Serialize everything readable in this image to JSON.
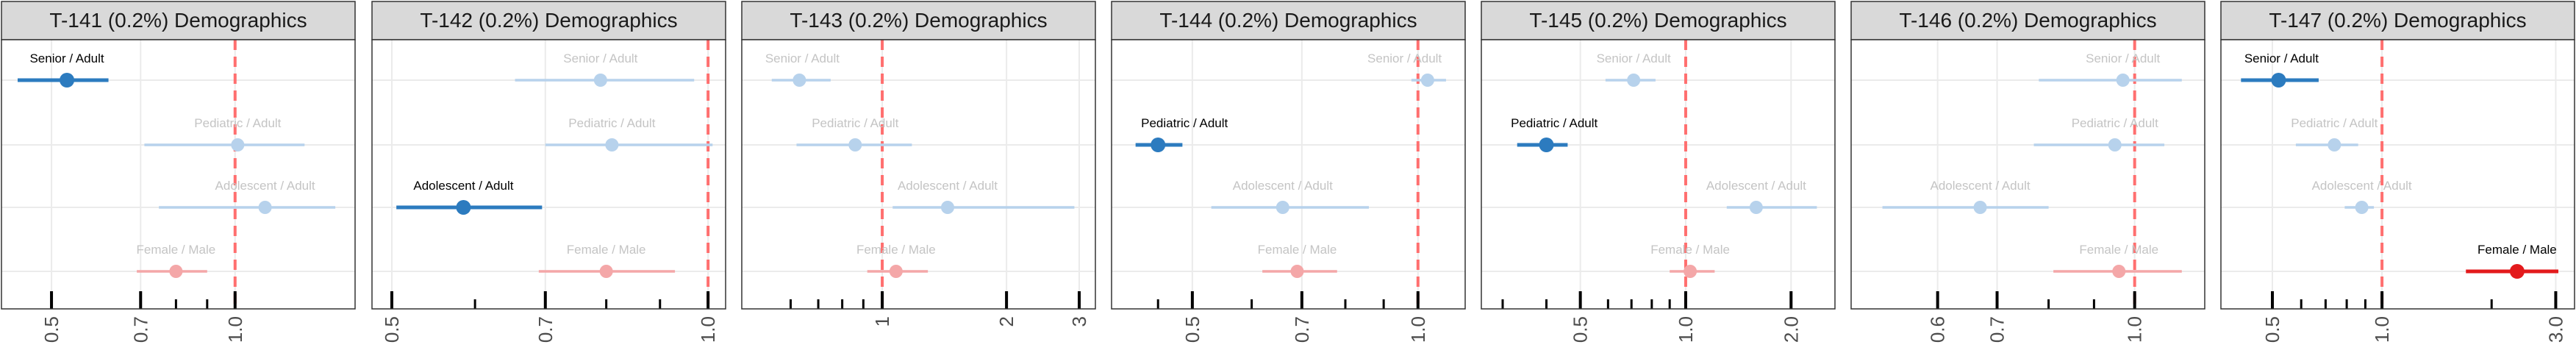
{
  "colors": {
    "strip_bg": "#d9d9d9",
    "strip_border": "#333333",
    "grid": "#ebebeb",
    "panel_border": "#333333",
    "ref_line": "#ff6f6f",
    "blue": "#2c7bbf",
    "blue_faded": "#b7d2ec",
    "red": "#e31a1c",
    "red_faded": "#f4a7a8",
    "label_dark": "#000000",
    "label_faded": "#c4c4c4"
  },
  "chart_data": [
    {
      "type": "forest",
      "title": "T-141 (0.2%) Demographics",
      "log_x": true,
      "xlim": [
        0.44,
        1.48
      ],
      "reference_line": 1.0,
      "ticks": [
        {
          "value": 0.5,
          "label": "0.5"
        },
        {
          "value": 0.7,
          "label": "0.7"
        },
        {
          "value": 1.0,
          "label": "1.0"
        }
      ],
      "minor_ticks": [
        0.8,
        0.9
      ],
      "rows": [
        {
          "label": "Senior / Adult",
          "group": "age",
          "estimate": 0.53,
          "lower": 0.44,
          "upper": 0.62,
          "highlighted": true
        },
        {
          "label": "Pediatric / Adult",
          "group": "age",
          "estimate": 1.01,
          "lower": 0.71,
          "upper": 1.3,
          "highlighted": false
        },
        {
          "label": "Adolescent / Adult",
          "group": "age",
          "estimate": 1.12,
          "lower": 0.75,
          "upper": 1.46,
          "highlighted": false
        },
        {
          "label": "Female / Male",
          "group": "sex",
          "estimate": 0.8,
          "lower": 0.69,
          "upper": 0.9,
          "highlighted": false
        }
      ]
    },
    {
      "type": "forest",
      "title": "T-142 (0.2%) Demographics",
      "log_x": true,
      "xlim": [
        0.496,
        1.003
      ],
      "reference_line": 1.0,
      "ticks": [
        {
          "value": 0.5,
          "label": "0.5"
        },
        {
          "value": 0.7,
          "label": "0.7"
        },
        {
          "value": 1.0,
          "label": "1.0"
        }
      ],
      "minor_ticks": [
        0.6,
        0.8,
        0.9
      ],
      "rows": [
        {
          "label": "Senior / Adult",
          "group": "age",
          "estimate": 0.79,
          "lower": 0.655,
          "upper": 0.97,
          "highlighted": false
        },
        {
          "label": "Pediatric / Adult",
          "group": "age",
          "estimate": 0.81,
          "lower": 0.7,
          "upper": 1.01,
          "highlighted": false
        },
        {
          "label": "Adolescent / Adult",
          "group": "age",
          "estimate": 0.585,
          "lower": 0.505,
          "upper": 0.695,
          "highlighted": true
        },
        {
          "label": "Female / Male",
          "group": "sex",
          "estimate": 0.8,
          "lower": 0.69,
          "upper": 0.93,
          "highlighted": false
        }
      ]
    },
    {
      "type": "forest",
      "title": "T-143 (0.2%) Demographics",
      "log_x": true,
      "xlim": [
        0.5,
        3.0
      ],
      "reference_line": 1.0,
      "ticks": [
        {
          "value": 1,
          "label": "1"
        },
        {
          "value": 2,
          "label": "2"
        },
        {
          "value": 3,
          "label": "3"
        }
      ],
      "minor_ticks": [
        0.6,
        0.7,
        0.8,
        0.9
      ],
      "rows": [
        {
          "label": "Senior / Adult",
          "group": "age",
          "estimate": 0.63,
          "lower": 0.54,
          "upper": 0.75,
          "highlighted": false
        },
        {
          "label": "Pediatric / Adult",
          "group": "age",
          "estimate": 0.86,
          "lower": 0.62,
          "upper": 1.18,
          "highlighted": false
        },
        {
          "label": "Adolescent / Adult",
          "group": "age",
          "estimate": 1.44,
          "lower": 1.06,
          "upper": 2.92,
          "highlighted": false
        },
        {
          "label": "Female / Male",
          "group": "sex",
          "estimate": 1.08,
          "lower": 0.92,
          "upper": 1.29,
          "highlighted": false
        }
      ]
    },
    {
      "type": "forest",
      "title": "T-144 (0.2%) Demographics",
      "log_x": true,
      "xlim": [
        0.41,
        1.1
      ],
      "reference_line": 1.0,
      "ticks": [
        {
          "value": 0.5,
          "label": "0.5"
        },
        {
          "value": 0.7,
          "label": "0.7"
        },
        {
          "value": 1.0,
          "label": "1.0"
        }
      ],
      "minor_ticks": [
        0.45,
        0.6,
        0.8,
        0.9
      ],
      "rows": [
        {
          "label": "Senior / Adult",
          "group": "age",
          "estimate": 1.03,
          "lower": 0.98,
          "upper": 1.09,
          "highlighted": false
        },
        {
          "label": "Pediatric / Adult",
          "group": "age",
          "estimate": 0.45,
          "lower": 0.42,
          "upper": 0.485,
          "highlighted": true
        },
        {
          "label": "Adolescent / Adult",
          "group": "age",
          "estimate": 0.66,
          "lower": 0.53,
          "upper": 0.86,
          "highlighted": false
        },
        {
          "label": "Female / Male",
          "group": "sex",
          "estimate": 0.69,
          "lower": 0.62,
          "upper": 0.78,
          "highlighted": false
        }
      ]
    },
    {
      "type": "forest",
      "title": "T-145 (0.2%) Demographics",
      "log_x": true,
      "xlim": [
        0.29,
        2.4
      ],
      "reference_line": 1.0,
      "ticks": [
        {
          "value": 0.5,
          "label": "0.5"
        },
        {
          "value": 1.0,
          "label": "1.0"
        },
        {
          "value": 2.0,
          "label": "2.0"
        }
      ],
      "minor_ticks": [
        0.3,
        0.4,
        0.6,
        0.7,
        0.8,
        0.9
      ],
      "rows": [
        {
          "label": "Senior / Adult",
          "group": "age",
          "estimate": 0.71,
          "lower": 0.59,
          "upper": 0.82,
          "highlighted": false
        },
        {
          "label": "Pediatric / Adult",
          "group": "age",
          "estimate": 0.4,
          "lower": 0.33,
          "upper": 0.46,
          "highlighted": true
        },
        {
          "label": "Adolescent / Adult",
          "group": "age",
          "estimate": 1.59,
          "lower": 1.31,
          "upper": 2.37,
          "highlighted": false
        },
        {
          "label": "Female / Male",
          "group": "sex",
          "estimate": 1.03,
          "lower": 0.9,
          "upper": 1.21,
          "highlighted": false
        }
      ]
    },
    {
      "type": "forest",
      "title": "T-146 (0.2%) Demographics",
      "log_x": true,
      "xlim": [
        0.5,
        1.15
      ],
      "reference_line": 1.0,
      "ticks": [
        {
          "value": 0.6,
          "label": "0.6"
        },
        {
          "value": 0.7,
          "label": "0.7"
        },
        {
          "value": 1.0,
          "label": "1.0"
        }
      ],
      "minor_ticks": [
        0.8,
        0.9
      ],
      "rows": [
        {
          "label": "Senior / Adult",
          "group": "age",
          "estimate": 0.97,
          "lower": 0.78,
          "upper": 1.13,
          "highlighted": false
        },
        {
          "label": "Pediatric / Adult",
          "group": "age",
          "estimate": 0.95,
          "lower": 0.77,
          "upper": 1.08,
          "highlighted": false
        },
        {
          "label": "Adolescent / Adult",
          "group": "age",
          "estimate": 0.67,
          "lower": 0.52,
          "upper": 0.8,
          "highlighted": false
        },
        {
          "label": "Female / Male",
          "group": "sex",
          "estimate": 0.96,
          "lower": 0.81,
          "upper": 1.13,
          "highlighted": false
        }
      ]
    },
    {
      "type": "forest",
      "title": "T-147 (0.2%) Demographics",
      "log_x": true,
      "xlim": [
        0.4,
        3.05
      ],
      "reference_line": 1.0,
      "ticks": [
        {
          "value": 0.5,
          "label": "0.5"
        },
        {
          "value": 1.0,
          "label": "1.0"
        },
        {
          "value": 3.0,
          "label": "3.0"
        }
      ],
      "minor_ticks": [
        0.6,
        0.7,
        0.8,
        0.9,
        2.0
      ],
      "rows": [
        {
          "label": "Senior / Adult",
          "group": "age",
          "estimate": 0.52,
          "lower": 0.41,
          "upper": 0.67,
          "highlighted": true
        },
        {
          "label": "Pediatric / Adult",
          "group": "age",
          "estimate": 0.74,
          "lower": 0.58,
          "upper": 0.86,
          "highlighted": false
        },
        {
          "label": "Adolescent / Adult",
          "group": "age",
          "estimate": 0.88,
          "lower": 0.79,
          "upper": 0.95,
          "highlighted": false
        },
        {
          "label": "Female / Male",
          "group": "sex",
          "estimate": 2.35,
          "lower": 1.7,
          "upper": 3.05,
          "highlighted": true
        }
      ]
    }
  ]
}
